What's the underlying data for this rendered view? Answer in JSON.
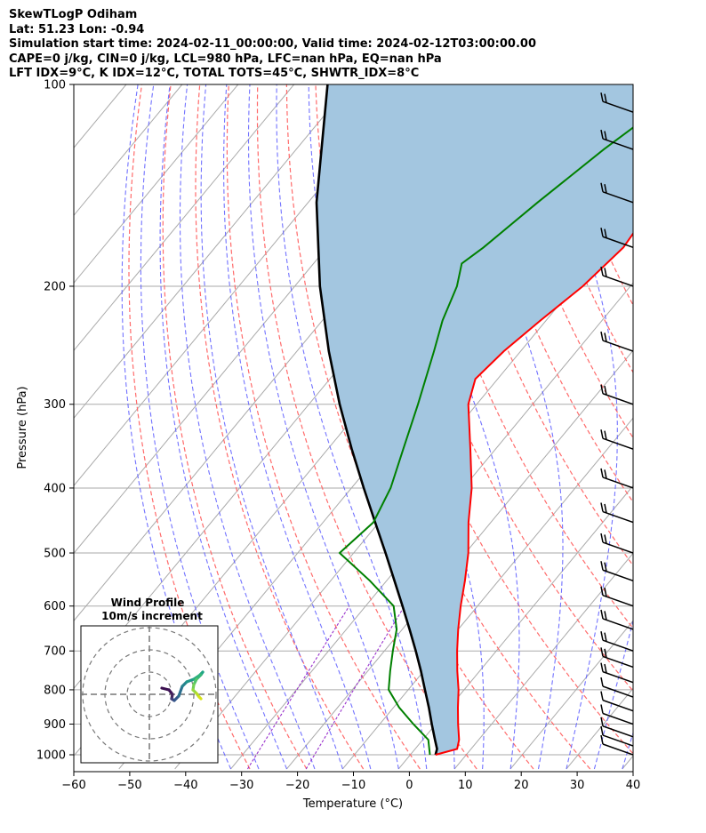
{
  "header": {
    "line1": "SkewTLogP Odiham",
    "line2": "Lat: 51.23   Lon: -0.94",
    "line3": "Simulation start time: 2024-02-11_00:00:00, Valid time: 2024-02-12T03:00:00.00",
    "line4": "CAPE=0 j/kg, CIN=0 j/kg, LCL=980 hPa, LFC=nan hPa, EQ=nan hPa",
    "line5": "LFT IDX=9°C, K IDX=12°C, TOTAL TOTS=45°C, SHWTR_IDX=8°C"
  },
  "inset": {
    "title_line1": "Wind Profile",
    "title_line2": "10m/s increment"
  },
  "colors": {
    "temperature": "#ff0000",
    "dewpoint": "#008000",
    "parcel": "#000000",
    "cape_fill": "#a3c6e0",
    "dry_adiabat": "#ff6b6b",
    "moist_adiabat": "#5a5aff",
    "mixing_ratio": "#9932cc",
    "isotherm": "#aaaaaa"
  },
  "chart_data": {
    "type": "line",
    "subtype": "skew-T log-P",
    "xlabel": "Temperature (°C)",
    "ylabel": "Pressure (hPa)",
    "xlim": [
      -60,
      40
    ],
    "ylim": [
      1050,
      100
    ],
    "yscale": "log",
    "xticks": [
      -60,
      -50,
      -40,
      -30,
      -20,
      -10,
      0,
      10,
      20,
      30,
      40
    ],
    "yticks": [
      1000,
      900,
      800,
      700,
      600,
      500,
      400,
      300,
      200,
      100
    ],
    "grid": true,
    "series": [
      {
        "role": "temperature",
        "points": [
          [
            1000,
            4.5
          ],
          [
            980,
            7.5
          ],
          [
            950,
            6.5
          ],
          [
            900,
            4
          ],
          [
            850,
            1.5
          ],
          [
            800,
            -1
          ],
          [
            750,
            -4
          ],
          [
            700,
            -7
          ],
          [
            650,
            -10
          ],
          [
            600,
            -13
          ],
          [
            550,
            -16
          ],
          [
            500,
            -19.5
          ],
          [
            450,
            -24
          ],
          [
            400,
            -28.5
          ],
          [
            350,
            -34.5
          ],
          [
            300,
            -41.5
          ],
          [
            275,
            -44
          ],
          [
            250,
            -43
          ],
          [
            225,
            -41
          ],
          [
            200,
            -38.5
          ],
          [
            175,
            -37
          ],
          [
            150,
            -38
          ],
          [
            125,
            -41
          ],
          [
            110,
            -42
          ],
          [
            100,
            -43
          ]
        ]
      },
      {
        "role": "dewpoint",
        "points": [
          [
            1000,
            3.5
          ],
          [
            950,
            1
          ],
          [
            900,
            -4
          ],
          [
            850,
            -9
          ],
          [
            800,
            -13.5
          ],
          [
            750,
            -16
          ],
          [
            700,
            -18.5
          ],
          [
            650,
            -21
          ],
          [
            600,
            -25
          ],
          [
            550,
            -33
          ],
          [
            500,
            -42.5
          ],
          [
            450,
            -41
          ],
          [
            400,
            -43
          ],
          [
            350,
            -46.5
          ],
          [
            300,
            -50.5
          ],
          [
            250,
            -55.5
          ],
          [
            225,
            -58.5
          ],
          [
            200,
            -61
          ],
          [
            185,
            -63.5
          ],
          [
            175,
            -62
          ],
          [
            150,
            -59
          ],
          [
            125,
            -55
          ],
          [
            100,
            -49
          ]
        ]
      },
      {
        "role": "parcel",
        "points": [
          [
            1000,
            4.5
          ],
          [
            980,
            3.9
          ],
          [
            950,
            2.2
          ],
          [
            900,
            -0.7
          ],
          [
            850,
            -3.7
          ],
          [
            800,
            -7
          ],
          [
            750,
            -10.5
          ],
          [
            700,
            -14.4
          ],
          [
            650,
            -18.7
          ],
          [
            600,
            -23.4
          ],
          [
            550,
            -28.6
          ],
          [
            500,
            -34.3
          ],
          [
            450,
            -40.7
          ],
          [
            400,
            -47.8
          ],
          [
            350,
            -55.7
          ],
          [
            300,
            -64.5
          ],
          [
            250,
            -74.3
          ],
          [
            200,
            -85.5
          ],
          [
            150,
            -98.5
          ],
          [
            100,
            -114
          ]
        ]
      }
    ],
    "wind_barbs_pressures": [
      1000,
      970,
      940,
      900,
      860,
      820,
      780,
      740,
      700,
      650,
      600,
      550,
      500,
      450,
      400,
      350,
      300,
      250,
      200,
      175,
      150,
      125,
      110,
      100
    ]
  }
}
